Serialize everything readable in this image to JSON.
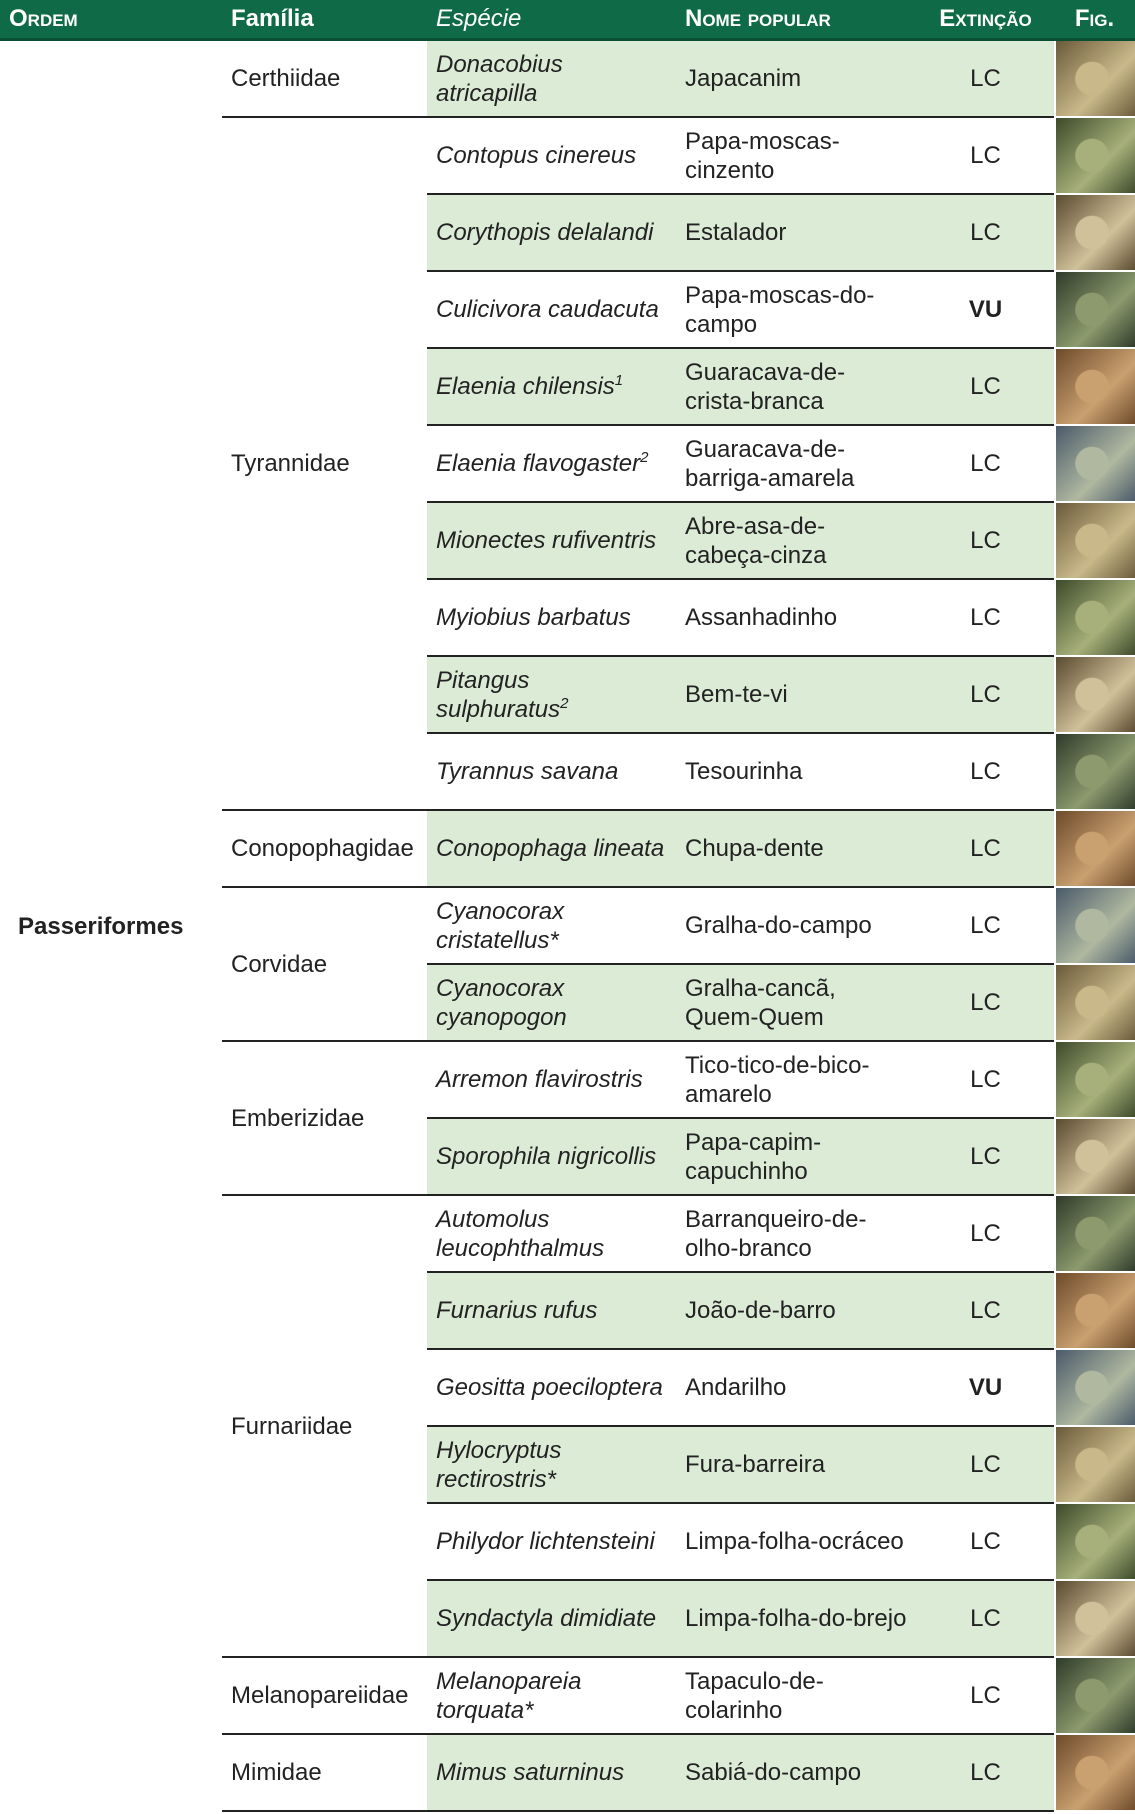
{
  "header": {
    "order": "Ordem",
    "family": "Família",
    "species": "Espécie",
    "common": "Nome popular",
    "status": "Extinção",
    "figure": "Fig."
  },
  "order": "Passeriformes",
  "families": [
    {
      "name": "Certhiidae",
      "species": [
        {
          "species": "Donacobius atricapilla",
          "common": "Japacanim",
          "status": "LC"
        }
      ]
    },
    {
      "name": "Tyrannidae",
      "species": [
        {
          "species": "Contopus cinereus",
          "common": "Papa-moscas-cinzento",
          "status": "LC"
        },
        {
          "species": "Corythopis delalandi",
          "common": "Estalador",
          "status": "LC"
        },
        {
          "species": "Culicivora caudacuta",
          "common": "Papa-moscas-do-campo",
          "status": "VU"
        },
        {
          "species": "Elaenia chilensis",
          "sup": "1",
          "common": "Guaracava-de-crista-branca",
          "status": "LC"
        },
        {
          "species": "Elaenia flavogaster",
          "sup": "2",
          "common": "Guaracava-de-barriga-amarela",
          "status": "LC"
        },
        {
          "species": "Mionectes rufiventris",
          "common": "Abre-asa-de-cabeça-cinza",
          "status": "LC"
        },
        {
          "species": "Myiobius barbatus",
          "common": "Assanhadinho",
          "status": "LC"
        },
        {
          "species": "Pitangus sulphuratus",
          "sup": "2",
          "common": "Bem-te-vi",
          "status": "LC"
        },
        {
          "species": "Tyrannus savana",
          "common": "Tesourinha",
          "status": "LC"
        }
      ]
    },
    {
      "name": "Conopophagidae",
      "species": [
        {
          "species": "Conopophaga lineata",
          "common": "Chupa-dente",
          "status": "LC"
        }
      ]
    },
    {
      "name": "Corvidae",
      "species": [
        {
          "species": "Cyanocorax cristatellus*",
          "common": "Gralha-do-campo",
          "status": "LC"
        },
        {
          "species": "Cyanocorax cyanopogon",
          "common": "Gralha-cancã, Quem-Quem",
          "status": "LC"
        }
      ]
    },
    {
      "name": "Emberizidae",
      "species": [
        {
          "species": "Arremon flavirostris",
          "common": "Tico-tico-de-bico-amarelo",
          "status": "LC"
        },
        {
          "species": "Sporophila nigricollis",
          "common": "Papa-capim-capuchinho",
          "status": "LC"
        }
      ]
    },
    {
      "name": "Furnariidae",
      "species": [
        {
          "species": "Automolus leucophthalmus",
          "common": "Barranqueiro-de-olho-branco",
          "status": "LC"
        },
        {
          "species": "Furnarius rufus",
          "common": "João-de-barro",
          "status": "LC"
        },
        {
          "species": "Geositta poeciloptera",
          "common": "Andarilho",
          "status": "VU"
        },
        {
          "species": "Hylocryptus rectirostris*",
          "common": "Fura-barreira",
          "status": "LC"
        },
        {
          "species": "Philydor lichtensteini",
          "common": "Limpa-folha-ocráceo",
          "status": "LC"
        },
        {
          "species": "Syndactyla dimidiate",
          "common": "Limpa-folha-do-brejo",
          "status": "LC"
        }
      ]
    },
    {
      "name": "Melanopareiidae",
      "species": [
        {
          "species": "Melanopareia torquata*",
          "common": "Tapaculo-de-colarinho",
          "status": "LC"
        }
      ]
    },
    {
      "name": "Mimidae",
      "species": [
        {
          "species": "Mimus saturninus",
          "common": "Sabiá-do-campo",
          "status": "LC"
        }
      ]
    }
  ]
}
